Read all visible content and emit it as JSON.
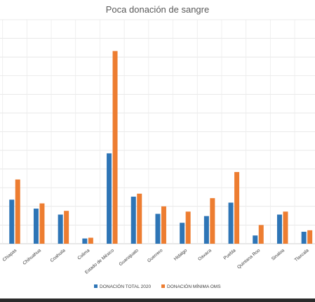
{
  "chart_data": {
    "type": "bar",
    "title": "Poca donación de sangre",
    "categories": [
      "Chiapas",
      "Chihuahua",
      "Coahuila",
      "Colima",
      "Estado de México",
      "Guanajuato",
      "Guerrero",
      "Hidalgo",
      "Oaxaca",
      "Puebla",
      "Quintana Roo",
      "Sinaloa",
      "Tlaxcala",
      "Ver"
    ],
    "series": [
      {
        "name": "DONACIÓN TOTAL 2020",
        "color": "#2E75B6",
        "values": [
          59,
          47,
          39,
          7,
          121,
          63,
          40,
          28,
          37,
          55,
          11,
          39,
          16,
          null
        ]
      },
      {
        "name": "DONACIÓN MÍNIMA OMS",
        "color": "#ED7D31",
        "values": [
          86,
          54,
          44,
          8,
          258,
          67,
          50,
          43,
          61,
          96,
          25,
          43,
          18,
          null
        ]
      }
    ],
    "ylim": [
      0,
      300
    ],
    "grid": true,
    "legend_position": "bottom",
    "xlabel": "",
    "ylabel": ""
  }
}
